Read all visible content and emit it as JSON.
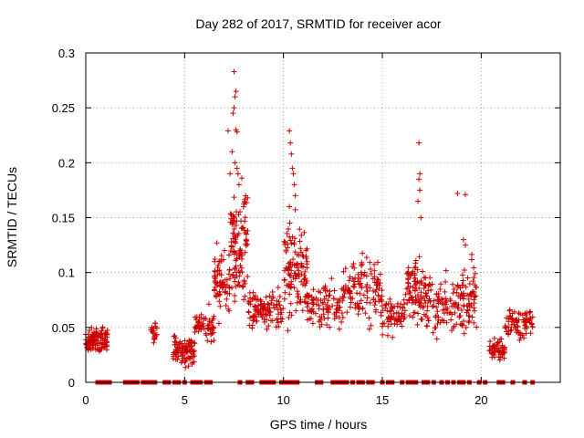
{
  "chart_data": {
    "type": "scatter",
    "title": "Day 282 of 2017, SRMTID for receiver acor",
    "xlabel": "GPS time / hours",
    "ylabel": "SRMTID / TECUs",
    "xlim": [
      0,
      24
    ],
    "ylim": [
      0,
      0.3
    ],
    "xticks": [
      0,
      5,
      10,
      15,
      20
    ],
    "yticks": [
      0,
      0.05,
      0.1,
      0.15,
      0.2,
      0.25,
      0.3
    ],
    "xtick_labels": [
      "0",
      "5",
      "10",
      "15",
      "20"
    ],
    "ytick_labels": [
      "0",
      "0.05",
      "0.1",
      "0.15",
      "0.2",
      "0.25",
      "0.3"
    ],
    "grid": true,
    "marker_color": "#cc0000",
    "marker": "plus",
    "clusters": [
      {
        "x0": 0.0,
        "x1": 1.1,
        "center": 0.038,
        "spread": 0.01,
        "count": 110
      },
      {
        "x0": 3.3,
        "x1": 3.6,
        "center": 0.047,
        "spread": 0.008,
        "count": 20
      },
      {
        "x0": 4.4,
        "x1": 5.5,
        "center": 0.03,
        "spread": 0.012,
        "count": 90
      },
      {
        "x0": 5.5,
        "x1": 6.5,
        "center": 0.052,
        "spread": 0.012,
        "count": 60
      },
      {
        "x0": 6.5,
        "x1": 7.3,
        "center": 0.09,
        "spread": 0.025,
        "count": 70
      },
      {
        "x0": 7.3,
        "x1": 8.2,
        "center": 0.13,
        "spread": 0.04,
        "count": 110
      },
      {
        "x0": 8.2,
        "x1": 10.0,
        "center": 0.065,
        "spread": 0.015,
        "count": 110
      },
      {
        "x0": 10.0,
        "x1": 11.2,
        "center": 0.1,
        "spread": 0.035,
        "count": 120
      },
      {
        "x0": 11.2,
        "x1": 13.0,
        "center": 0.07,
        "spread": 0.015,
        "count": 100
      },
      {
        "x0": 13.0,
        "x1": 15.0,
        "center": 0.085,
        "spread": 0.025,
        "count": 120
      },
      {
        "x0": 15.0,
        "x1": 16.2,
        "center": 0.06,
        "spread": 0.015,
        "count": 70
      },
      {
        "x0": 16.2,
        "x1": 17.2,
        "center": 0.085,
        "spread": 0.025,
        "count": 90
      },
      {
        "x0": 17.2,
        "x1": 18.8,
        "center": 0.07,
        "spread": 0.02,
        "count": 90
      },
      {
        "x0": 18.8,
        "x1": 19.8,
        "center": 0.075,
        "spread": 0.025,
        "count": 80
      },
      {
        "x0": 20.4,
        "x1": 21.2,
        "center": 0.03,
        "spread": 0.008,
        "count": 60
      },
      {
        "x0": 21.2,
        "x1": 22.7,
        "center": 0.055,
        "spread": 0.013,
        "count": 80
      }
    ],
    "highlight_points": [
      [
        7.5,
        0.283
      ],
      [
        7.6,
        0.265
      ],
      [
        7.55,
        0.26
      ],
      [
        7.5,
        0.25
      ],
      [
        7.45,
        0.245
      ],
      [
        7.6,
        0.23
      ],
      [
        7.65,
        0.228
      ],
      [
        7.2,
        0.229
      ],
      [
        7.4,
        0.21
      ],
      [
        7.55,
        0.2
      ],
      [
        7.65,
        0.195
      ],
      [
        7.7,
        0.19
      ],
      [
        7.3,
        0.19
      ],
      [
        7.75,
        0.18
      ],
      [
        10.3,
        0.229
      ],
      [
        10.35,
        0.218
      ],
      [
        10.4,
        0.208
      ],
      [
        10.45,
        0.195
      ],
      [
        10.5,
        0.19
      ],
      [
        10.55,
        0.18
      ],
      [
        10.3,
        0.16
      ],
      [
        10.6,
        0.17
      ],
      [
        16.85,
        0.218
      ],
      [
        16.9,
        0.19
      ],
      [
        16.85,
        0.185
      ],
      [
        16.9,
        0.175
      ],
      [
        16.8,
        0.165
      ],
      [
        16.95,
        0.15
      ],
      [
        18.8,
        0.172
      ],
      [
        19.2,
        0.171
      ],
      [
        19.1,
        0.13
      ],
      [
        19.2,
        0.125
      ]
    ],
    "zero_points": [
      0.6,
      0.7,
      0.8,
      1.0,
      1.1,
      1.2,
      2.0,
      2.2,
      2.4,
      2.6,
      2.9,
      3.1,
      3.3,
      3.5,
      4.0,
      4.2,
      4.5,
      4.7,
      5.0,
      5.4,
      5.6,
      5.8,
      6.1,
      6.3,
      7.8,
      8.2,
      8.4,
      8.9,
      9.1,
      9.3,
      9.5,
      9.9,
      10.1,
      10.3,
      10.5,
      10.7,
      11.7,
      11.8,
      11.9,
      12.5,
      12.6,
      12.8,
      13.0,
      13.2,
      13.5,
      13.8,
      14.0,
      14.3,
      14.5,
      15.0,
      15.3,
      15.5,
      16.0,
      16.3,
      16.5,
      16.7,
      17.1,
      17.3,
      17.6,
      18.0,
      18.3,
      18.6,
      18.9,
      19.1,
      19.4,
      19.9,
      20.2,
      20.9,
      21.1,
      21.6,
      22.2,
      22.6
    ]
  }
}
